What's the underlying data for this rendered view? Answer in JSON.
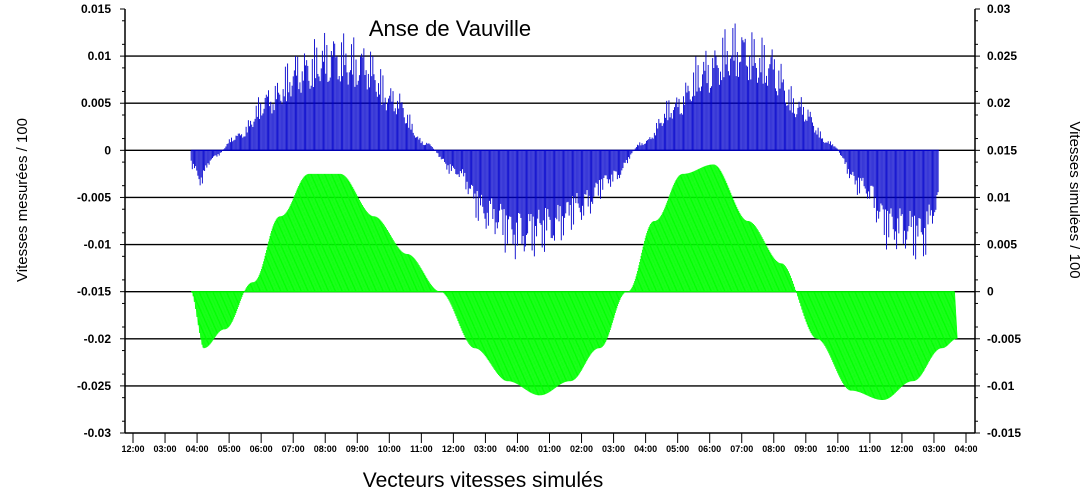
{
  "chart_data": {
    "type": "line",
    "title": "Anse de Vauville",
    "bottom_label": "Vecteurs  vitesses simulés",
    "ylabel_left": "Vitesses mesurées / 100",
    "ylabel_right": "Vitesses simulées / 100",
    "ylim_left": [
      -0.03,
      0.015
    ],
    "ylim_right": [
      -0.015,
      0.03
    ],
    "yticks_left": [
      "0.015",
      "0.01",
      "0.005",
      "0",
      "-0.005",
      "-0.01",
      "-0.015",
      "-0.02",
      "-0.025",
      "-0.03"
    ],
    "yticks_right": [
      "0.03",
      "0.025",
      "0.02",
      "0.015",
      "0.01",
      "0.005",
      "0",
      "-0.005",
      "-0.01",
      "-0.015"
    ],
    "xticks": [
      "12:00",
      "03:00",
      "04:00",
      "05:00",
      "06:00",
      "07:00",
      "08:00",
      "09:00",
      "10:00",
      "11:00",
      "12:00",
      "03:00",
      "04:00",
      "01:00",
      "02:00",
      "03:00",
      "04:00",
      "05:00",
      "06:00",
      "07:00",
      "08:00",
      "09:00",
      "10:00",
      "11:00",
      "12:00",
      "03:00",
      "04:00"
    ],
    "xlim": [
      0,
      26
    ],
    "grid": true,
    "series": [
      {
        "color": "#0000cc",
        "axis": "left",
        "baseline": 0,
        "x": [
          1.0,
          1.3,
          1.7,
          2.5,
          3.5,
          4.5,
          5.5,
          6.5,
          7.5,
          8.5,
          9.5,
          10.5,
          11.5,
          12.5,
          13.5,
          14.5,
          15.5,
          16.5,
          17.5,
          18.5,
          19.5,
          20.5,
          21.5,
          22.5,
          23.5,
          24.5,
          25.0
        ],
        "values": [
          -0.002,
          -0.004,
          -0.001,
          0.002,
          0.007,
          0.011,
          0.013,
          0.012,
          0.007,
          0.001,
          -0.003,
          -0.009,
          -0.012,
          -0.011,
          -0.008,
          -0.004,
          0.001,
          0.006,
          0.011,
          0.014,
          0.012,
          0.006,
          0.001,
          -0.005,
          -0.011,
          -0.012,
          -0.007
        ]
      },
      {
        "color": "#00ff00",
        "axis": "right",
        "baseline": 0,
        "x": [
          1.0,
          1.3,
          2.0,
          3.0,
          4.0,
          5.0,
          6.0,
          7.0,
          8.0,
          9.0,
          10.0,
          11.0,
          12.0,
          13.0,
          14.0,
          15.0,
          16.0,
          17.0,
          18.0,
          19.0,
          20.0,
          21.0,
          22.0,
          23.0,
          24.0,
          25.0,
          25.5
        ],
        "values": [
          0.0,
          -0.006,
          -0.004,
          0.001,
          0.008,
          0.0125,
          0.0125,
          0.008,
          0.004,
          0.0,
          -0.006,
          -0.0095,
          -0.011,
          -0.0095,
          -0.006,
          0.0,
          0.0075,
          0.0125,
          0.0135,
          0.0075,
          0.003,
          -0.005,
          -0.0105,
          -0.0115,
          -0.0095,
          -0.006,
          -0.005
        ]
      }
    ]
  }
}
